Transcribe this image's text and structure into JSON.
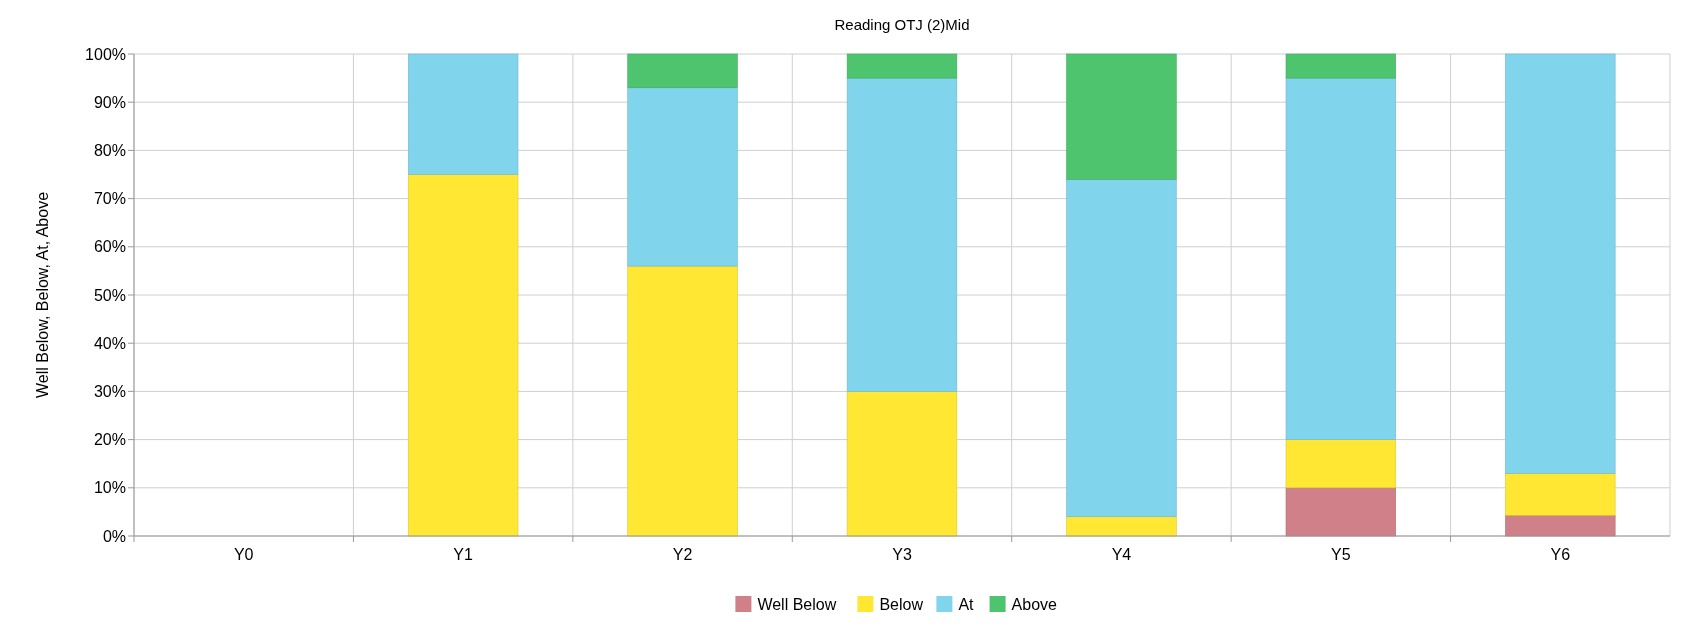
{
  "chart_data": {
    "type": "bar",
    "title": "Reading OTJ (2)Mid",
    "ylabel": "Well Below, Below, At, Above",
    "categories": [
      "Y0",
      "Y1",
      "Y2",
      "Y3",
      "Y4",
      "Y5",
      "Y6"
    ],
    "stacked": true,
    "series": [
      {
        "name": "Well Below",
        "color": "#cf8088",
        "values": [
          null,
          0,
          0,
          0,
          0,
          10,
          4.3
        ]
      },
      {
        "name": "Below",
        "color": "#ffe733",
        "values": [
          null,
          75,
          56,
          30,
          4,
          10,
          8.7
        ]
      },
      {
        "name": "At",
        "color": "#80d4ec",
        "values": [
          null,
          25,
          37,
          65,
          70,
          75,
          87
        ]
      },
      {
        "name": "Above",
        "color": "#4fc46e",
        "values": [
          null,
          0,
          7,
          5,
          26,
          5,
          0
        ]
      }
    ],
    "ylim": [
      0,
      100
    ],
    "yticks": [
      {
        "value": 0,
        "label": "0%"
      },
      {
        "value": 10,
        "label": "10%"
      },
      {
        "value": 20,
        "label": "20%"
      },
      {
        "value": 30,
        "label": "30%"
      },
      {
        "value": 40,
        "label": "40%"
      },
      {
        "value": 50,
        "label": "50%"
      },
      {
        "value": 60,
        "label": "60%"
      },
      {
        "value": 70,
        "label": "70%"
      },
      {
        "value": 80,
        "label": "80%"
      },
      {
        "value": 90,
        "label": "90%"
      },
      {
        "value": 100,
        "label": "100%"
      }
    ],
    "grid": true,
    "legend": "bottom"
  }
}
